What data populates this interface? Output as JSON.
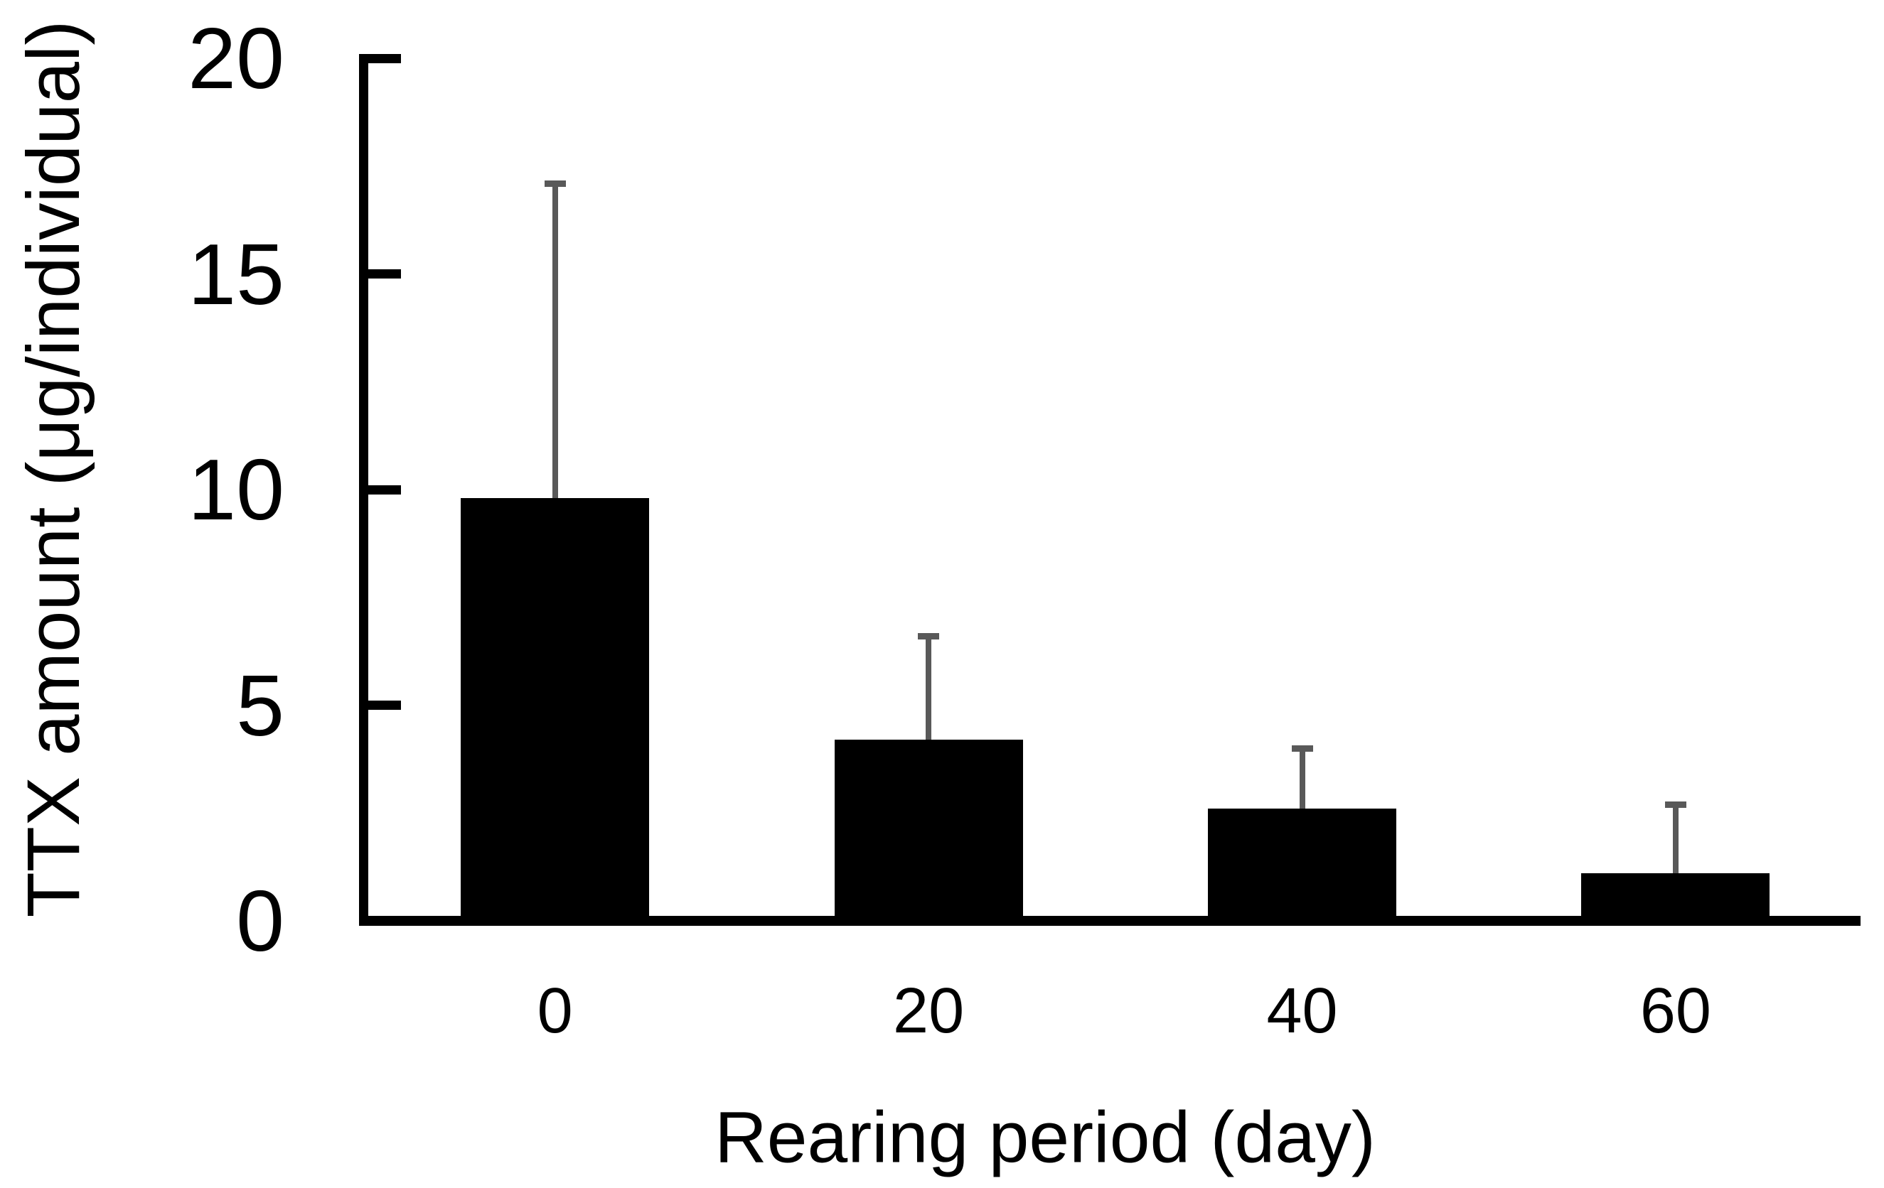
{
  "chart_data": {
    "type": "bar",
    "title": "",
    "xlabel": "Rearing period (day)",
    "ylabel": "TTX amount (μg/individual)",
    "categories": [
      "0",
      "20",
      "40",
      "60"
    ],
    "values": [
      9.8,
      4.2,
      2.6,
      1.1
    ],
    "error_upper": [
      7.3,
      2.4,
      1.4,
      1.6
    ],
    "error_tops": [
      17.1,
      6.6,
      4.0,
      2.7
    ],
    "yticks": [
      0,
      5,
      10,
      15,
      20
    ],
    "ylim": [
      0,
      20
    ],
    "grid": false,
    "legend": false,
    "bar_color": "#000000",
    "error_bar_color": "#595959",
    "axis_color": "#000000",
    "background_color": "#ffffff"
  }
}
